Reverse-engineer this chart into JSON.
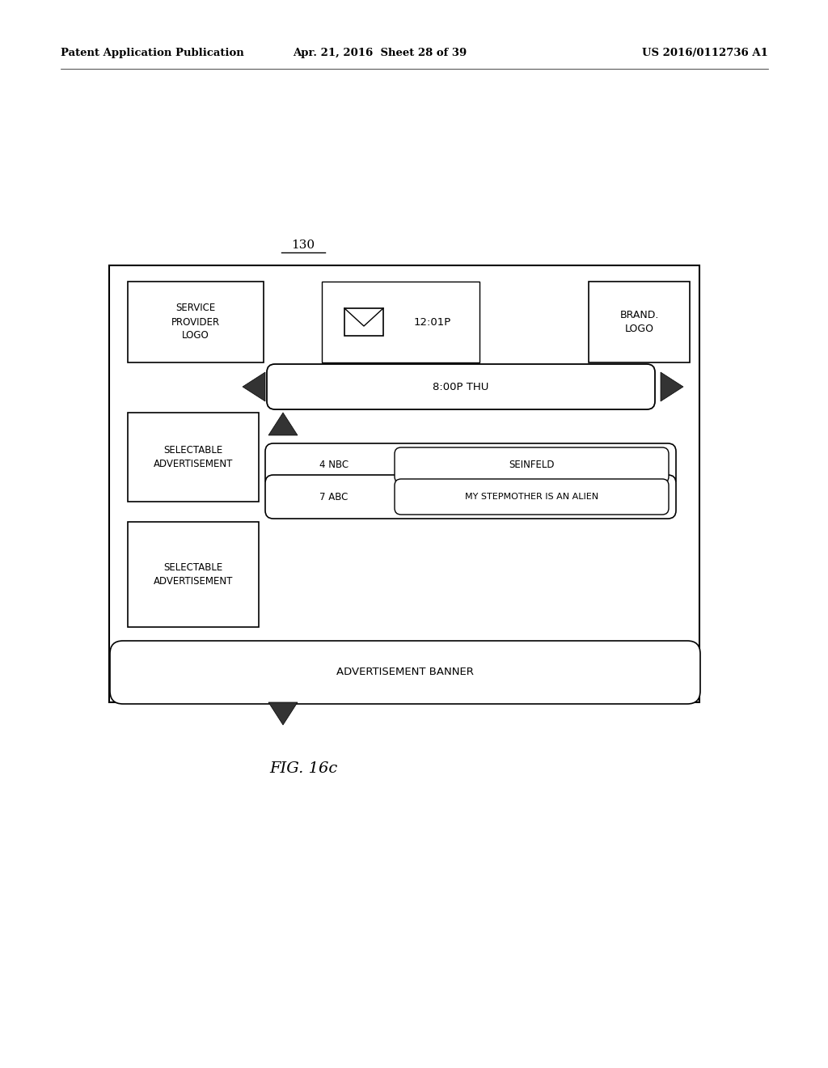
{
  "bg_color": "#ffffff",
  "header_left": "Patent Application Publication",
  "header_mid": "Apr. 21, 2016  Sheet 28 of 39",
  "header_right": "US 2016/0112736 A1",
  "fig_label": "FIG. 16c",
  "diagram_label": "130",
  "service_provider_text": "SERVICE\nPROVIDER\nLOGO",
  "brand_text": "BRAND.\nLOGO",
  "time_text": "12:01P",
  "nav_text": "8:00P THU",
  "row1_channel": "4 NBC",
  "row1_show": "SEINFELD",
  "row2_channel": "7 ABC",
  "row2_show": "MY STEPMOTHER IS AN ALIEN",
  "selectable_ad_text": "SELECTABLE\nADVERTISEMENT",
  "ad_banner_text": "ADVERTISEMENT BANNER",
  "arrow_color": "#333333"
}
